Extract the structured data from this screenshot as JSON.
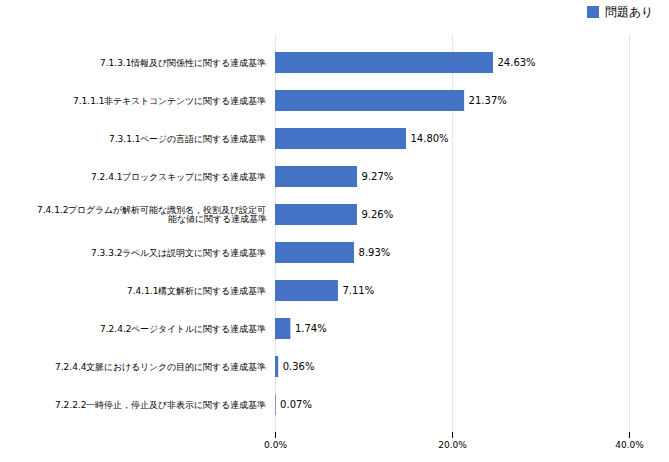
{
  "chart_data": {
    "type": "bar",
    "orientation": "horizontal",
    "categories": [
      "7.2.2.2一時停止，停止及び非表示に関する達成基準",
      "7.2.4.4文脈におけるリンクの目的に関する達成基準",
      "7.2.4.2ページタイトルに関する達成基準",
      "7.4.1.1構文解析に関する達成基準",
      "7.3.3.2ラベル又は説明文に関する達成基準",
      "7.4.1.2プログラムが解析可能な識別名，役割及び設定可\n能な値に関する達成基準",
      "7.2.4.1ブロックスキップに関する達成基準",
      "7.3.1.1ページの言語に関する達成基準",
      "7.1.1.1非テキストコンテンツに関する達成基準",
      "7.1.3.1情報及び関係性に関する達成基準"
    ],
    "series": [
      {
        "name": "問題あり",
        "color": "#4472c4",
        "values": [
          0.07,
          0.36,
          1.74,
          7.11,
          8.93,
          9.26,
          9.27,
          14.8,
          21.37,
          24.63
        ],
        "value_labels": [
          "0.07%",
          "0.36%",
          "1.74%",
          "7.11%",
          "8.93%",
          "9.26%",
          "9.27%",
          "14.80%",
          "21.37%",
          "24.63%"
        ]
      }
    ],
    "xlim": [
      0,
      40
    ],
    "xticks": [
      {
        "value": 0,
        "label": "0.0%"
      },
      {
        "value": 20,
        "label": "20.0%"
      },
      {
        "value": 40,
        "label": "40.0%"
      }
    ],
    "grid": true,
    "legend": "top-right",
    "data_labels": true
  }
}
